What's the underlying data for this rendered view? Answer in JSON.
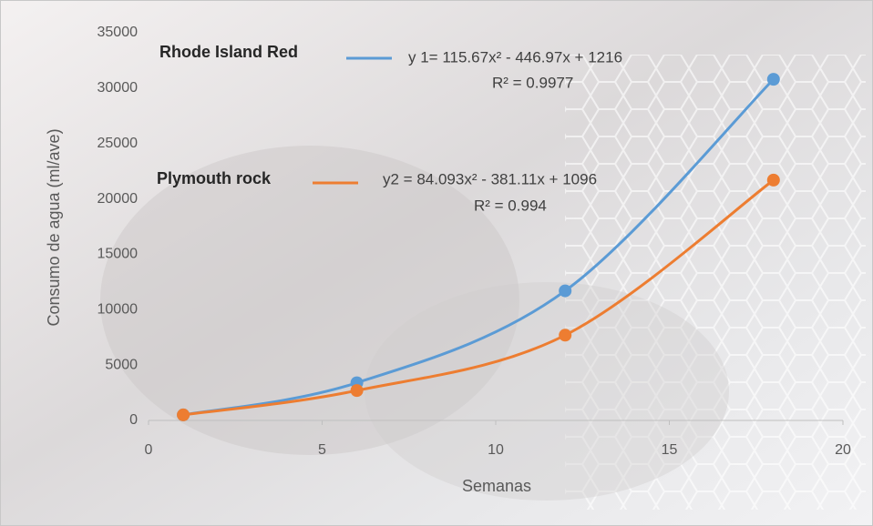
{
  "chart_data": {
    "type": "line",
    "x_label": "Semanas",
    "y_label": "Consumo de agua (ml/ave)",
    "xlim": [
      0,
      20
    ],
    "xticks": [
      0,
      5,
      10,
      15,
      20
    ],
    "ylim": [
      0,
      35000
    ],
    "yticks": [
      0,
      5000,
      10000,
      15000,
      20000,
      25000,
      30000,
      35000
    ],
    "grid": false,
    "series": [
      {
        "name": "Rhode Island Red",
        "color": "#5b9bd5",
        "x": [
          1,
          6,
          12,
          18
        ],
        "values": [
          500,
          3400,
          11700,
          30800
        ],
        "equation": "y 1= 115.67x² - 446.97x + 1216",
        "r_squared": "R² = 0.9977"
      },
      {
        "name": "Plymouth rock",
        "color": "#ed7d31",
        "x": [
          1,
          6,
          12,
          18
        ],
        "values": [
          500,
          2700,
          7700,
          21700
        ],
        "equation": "y2 = 84.093x² - 381.11x + 1096",
        "r_squared": "R² = 0.994"
      }
    ]
  }
}
